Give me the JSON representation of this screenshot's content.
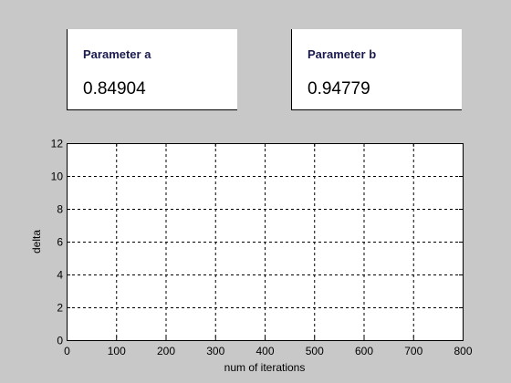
{
  "params": {
    "a": {
      "label": "Parameter a",
      "value": "0.84904"
    },
    "b": {
      "label": "Parameter b",
      "value": "0.94779"
    }
  },
  "chart_data": {
    "type": "line",
    "title": "",
    "xlabel": "num of iterations",
    "ylabel": "delta",
    "xlim": [
      0,
      800
    ],
    "ylim": [
      0,
      12
    ],
    "xticks": [
      0,
      100,
      200,
      300,
      400,
      500,
      600,
      700,
      800
    ],
    "yticks": [
      0,
      2,
      4,
      6,
      8,
      10,
      12
    ],
    "grid": true,
    "grid_style": "dashed",
    "series": []
  }
}
